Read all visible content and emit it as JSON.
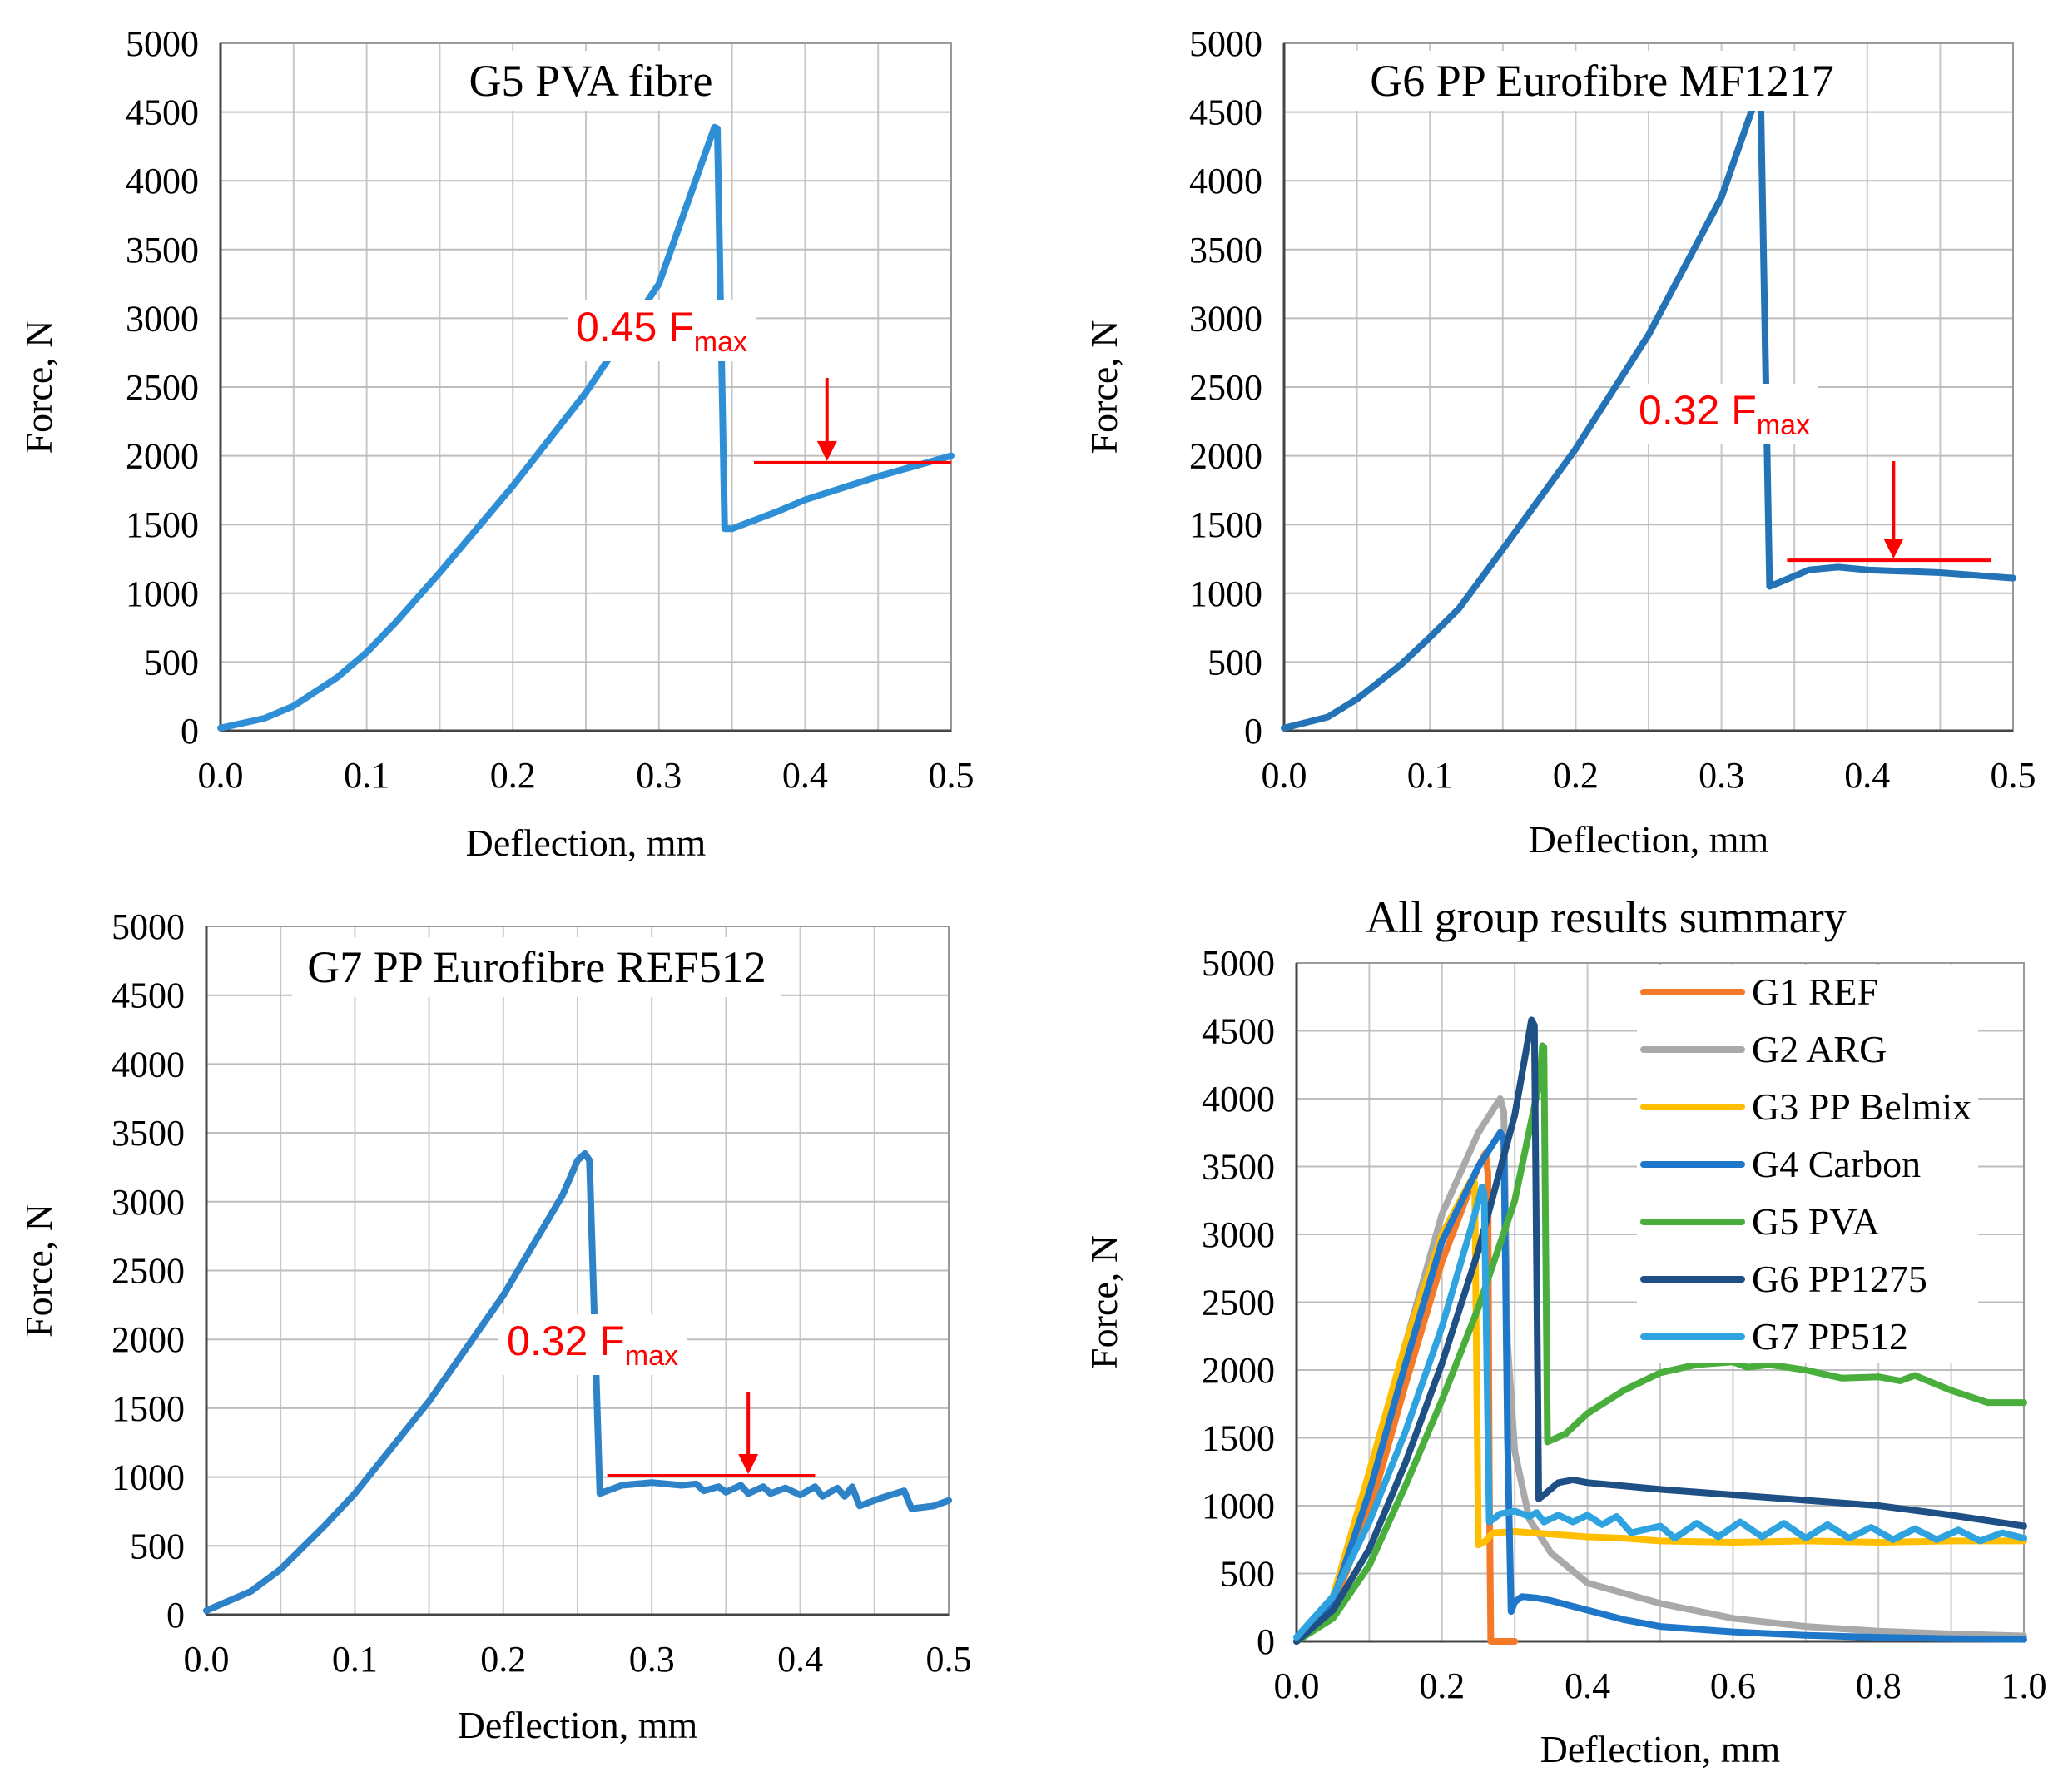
{
  "chart_data": [
    {
      "type": "line",
      "title": "G5 PVA fibre",
      "xlabel": "Deflection, mm",
      "ylabel": "Force, N",
      "xlim": [
        0,
        0.5
      ],
      "ylim": [
        0,
        5000
      ],
      "xticks": [
        "0.0",
        "0.1",
        "0.2",
        "0.3",
        "0.4",
        "0.5"
      ],
      "yticks": [
        "0",
        "500",
        "1000",
        "1500",
        "2000",
        "2500",
        "3000",
        "3500",
        "4000",
        "4500",
        "5000"
      ],
      "grid": true,
      "series": [
        {
          "name": "G5 PVA fibre",
          "color": "#2e8fd6",
          "points": [
            [
              0,
              20
            ],
            [
              0.03,
              90
            ],
            [
              0.05,
              180
            ],
            [
              0.08,
              390
            ],
            [
              0.1,
              570
            ],
            [
              0.12,
              790
            ],
            [
              0.15,
              1150
            ],
            [
              0.2,
              1780
            ],
            [
              0.25,
              2460
            ],
            [
              0.3,
              3250
            ],
            [
              0.338,
              4390
            ],
            [
              0.34,
              4380
            ],
            [
              0.345,
              1470
            ],
            [
              0.35,
              1470
            ],
            [
              0.38,
              1590
            ],
            [
              0.4,
              1680
            ],
            [
              0.45,
              1850
            ],
            [
              0.5,
              2000
            ]
          ]
        }
      ],
      "annotation": {
        "text": "0.45 F",
        "subscript": "max",
        "color": "#ff0000",
        "level": 1950,
        "x_from": 0.365,
        "x_to": 0.5,
        "arrow_x": 0.415
      }
    },
    {
      "type": "line",
      "title": "G6 PP Eurofibre MF1217",
      "xlabel": "Deflection, mm",
      "ylabel": "Force, N",
      "xlim": [
        0,
        0.5
      ],
      "ylim": [
        0,
        5000
      ],
      "xticks": [
        "0.0",
        "0.1",
        "0.2",
        "0.3",
        "0.4",
        "0.5"
      ],
      "yticks": [
        "0",
        "500",
        "1000",
        "1500",
        "2000",
        "2500",
        "3000",
        "3500",
        "4000",
        "4500",
        "5000"
      ],
      "grid": true,
      "series": [
        {
          "name": "G6 PP Eurofibre MF1217",
          "color": "#2473b6",
          "points": [
            [
              0,
              20
            ],
            [
              0.03,
              100
            ],
            [
              0.05,
              230
            ],
            [
              0.08,
              480
            ],
            [
              0.1,
              680
            ],
            [
              0.12,
              890
            ],
            [
              0.15,
              1320
            ],
            [
              0.2,
              2050
            ],
            [
              0.25,
              2880
            ],
            [
              0.3,
              3880
            ],
            [
              0.323,
              4580
            ],
            [
              0.327,
              4540
            ],
            [
              0.333,
              1050
            ],
            [
              0.34,
              1080
            ],
            [
              0.36,
              1170
            ],
            [
              0.38,
              1190
            ],
            [
              0.4,
              1170
            ],
            [
              0.45,
              1150
            ],
            [
              0.5,
              1110
            ]
          ]
        }
      ],
      "annotation": {
        "text": "0.32 F",
        "subscript": "max",
        "color": "#ff0000",
        "level": 1240,
        "x_from": 0.345,
        "x_to": 0.485,
        "arrow_x": 0.418
      }
    },
    {
      "type": "line",
      "title": "G7 PP Eurofibre REF512",
      "xlabel": "Deflection, mm",
      "ylabel": "Force, N",
      "xlim": [
        0,
        0.5
      ],
      "ylim": [
        0,
        5000
      ],
      "xticks": [
        "0.0",
        "0.1",
        "0.2",
        "0.3",
        "0.4",
        "0.5"
      ],
      "yticks": [
        "0",
        "500",
        "1000",
        "1500",
        "2000",
        "2500",
        "3000",
        "3500",
        "4000",
        "4500",
        "5000"
      ],
      "grid": true,
      "series": [
        {
          "name": "G7 PP Eurofibre REF512",
          "color": "#2e82c8",
          "points": [
            [
              0,
              30
            ],
            [
              0.03,
              170
            ],
            [
              0.05,
              330
            ],
            [
              0.08,
              650
            ],
            [
              0.1,
              880
            ],
            [
              0.15,
              1550
            ],
            [
              0.2,
              2320
            ],
            [
              0.24,
              3050
            ],
            [
              0.25,
              3300
            ],
            [
              0.255,
              3350
            ],
            [
              0.258,
              3300
            ],
            [
              0.265,
              880
            ],
            [
              0.28,
              940
            ],
            [
              0.3,
              960
            ],
            [
              0.32,
              940
            ],
            [
              0.33,
              950
            ],
            [
              0.335,
              900
            ],
            [
              0.345,
              930
            ],
            [
              0.35,
              890
            ],
            [
              0.36,
              940
            ],
            [
              0.365,
              880
            ],
            [
              0.375,
              930
            ],
            [
              0.38,
              880
            ],
            [
              0.39,
              920
            ],
            [
              0.4,
              870
            ],
            [
              0.41,
              930
            ],
            [
              0.415,
              860
            ],
            [
              0.425,
              920
            ],
            [
              0.43,
              860
            ],
            [
              0.435,
              930
            ],
            [
              0.44,
              790
            ],
            [
              0.455,
              850
            ],
            [
              0.47,
              900
            ],
            [
              0.475,
              770
            ],
            [
              0.49,
              790
            ],
            [
              0.5,
              830
            ]
          ]
        }
      ],
      "annotation": {
        "text": "0.32 F",
        "subscript": "max",
        "color": "#ff0000",
        "level": 1010,
        "x_from": 0.27,
        "x_to": 0.41,
        "arrow_x": 0.365
      }
    },
    {
      "type": "line",
      "title": "All group results summary",
      "xlabel": "Deflection, mm",
      "ylabel": "Force, N",
      "xlim": [
        0,
        1.0
      ],
      "ylim": [
        0,
        5000
      ],
      "xticks": [
        "0.0",
        "0.2",
        "0.4",
        "0.6",
        "0.8",
        "1.0"
      ],
      "yticks": [
        "0",
        "500",
        "1000",
        "1500",
        "2000",
        "2500",
        "3000",
        "3500",
        "4000",
        "4500",
        "5000"
      ],
      "grid": true,
      "legend_position": "top-right",
      "series": [
        {
          "name": "G1 REF",
          "color": "#f47a2a",
          "points": [
            [
              0,
              0
            ],
            [
              0.05,
              260
            ],
            [
              0.1,
              950
            ],
            [
              0.15,
              1900
            ],
            [
              0.2,
              2800
            ],
            [
              0.25,
              3500
            ],
            [
              0.26,
              3600
            ],
            [
              0.263,
              3450
            ],
            [
              0.265,
              1200
            ],
            [
              0.267,
              0
            ],
            [
              0.3,
              0
            ]
          ]
        },
        {
          "name": "G2 ARG",
          "color": "#a9a9a9",
          "points": [
            [
              0,
              0
            ],
            [
              0.05,
              320
            ],
            [
              0.1,
              1150
            ],
            [
              0.15,
              2200
            ],
            [
              0.2,
              3150
            ],
            [
              0.25,
              3750
            ],
            [
              0.28,
              4000
            ],
            [
              0.285,
              3900
            ],
            [
              0.29,
              2200
            ],
            [
              0.3,
              1400
            ],
            [
              0.32,
              900
            ],
            [
              0.35,
              650
            ],
            [
              0.4,
              430
            ],
            [
              0.5,
              280
            ],
            [
              0.6,
              170
            ],
            [
              0.7,
              110
            ],
            [
              0.8,
              75
            ],
            [
              0.9,
              55
            ],
            [
              1.0,
              40
            ]
          ]
        },
        {
          "name": "G3 PP Belmix",
          "color": "#ffbf00",
          "points": [
            [
              0,
              0
            ],
            [
              0.05,
              330
            ],
            [
              0.1,
              1250
            ],
            [
              0.15,
              2200
            ],
            [
              0.2,
              3000
            ],
            [
              0.24,
              3400
            ],
            [
              0.245,
              3380
            ],
            [
              0.25,
              710
            ],
            [
              0.26,
              740
            ],
            [
              0.27,
              800
            ],
            [
              0.3,
              810
            ],
            [
              0.35,
              790
            ],
            [
              0.4,
              770
            ],
            [
              0.45,
              760
            ],
            [
              0.5,
              740
            ],
            [
              0.6,
              730
            ],
            [
              0.7,
              740
            ],
            [
              0.8,
              730
            ],
            [
              0.9,
              740
            ],
            [
              1.0,
              740
            ]
          ]
        },
        {
          "name": "G4 Carbon",
          "color": "#1f77c9",
          "points": [
            [
              0,
              0
            ],
            [
              0.05,
              300
            ],
            [
              0.1,
              1100
            ],
            [
              0.15,
              2050
            ],
            [
              0.2,
              2950
            ],
            [
              0.25,
              3500
            ],
            [
              0.28,
              3750
            ],
            [
              0.285,
              3700
            ],
            [
              0.29,
              1500
            ],
            [
              0.295,
              220
            ],
            [
              0.3,
              290
            ],
            [
              0.31,
              330
            ],
            [
              0.33,
              320
            ],
            [
              0.35,
              300
            ],
            [
              0.4,
              230
            ],
            [
              0.45,
              160
            ],
            [
              0.5,
              110
            ],
            [
              0.6,
              70
            ],
            [
              0.7,
              45
            ],
            [
              0.8,
              30
            ],
            [
              0.9,
              20
            ],
            [
              1.0,
              15
            ]
          ]
        },
        {
          "name": "G5 PVA",
          "color": "#4aae3c",
          "points": [
            [
              0,
              0
            ],
            [
              0.05,
              170
            ],
            [
              0.1,
              560
            ],
            [
              0.15,
              1150
            ],
            [
              0.2,
              1780
            ],
            [
              0.25,
              2460
            ],
            [
              0.3,
              3250
            ],
            [
              0.335,
              4150
            ],
            [
              0.338,
              4390
            ],
            [
              0.34,
              4380
            ],
            [
              0.345,
              1470
            ],
            [
              0.37,
              1530
            ],
            [
              0.4,
              1680
            ],
            [
              0.45,
              1850
            ],
            [
              0.5,
              1980
            ],
            [
              0.55,
              2040
            ],
            [
              0.6,
              2060
            ],
            [
              0.62,
              2020
            ],
            [
              0.65,
              2040
            ],
            [
              0.7,
              2000
            ],
            [
              0.75,
              1940
            ],
            [
              0.8,
              1950
            ],
            [
              0.83,
              1920
            ],
            [
              0.85,
              1960
            ],
            [
              0.9,
              1850
            ],
            [
              0.95,
              1760
            ],
            [
              1.0,
              1760
            ]
          ]
        },
        {
          "name": "G6 PP1275",
          "color": "#1e4f85",
          "points": [
            [
              0,
              0
            ],
            [
              0.05,
              230
            ],
            [
              0.1,
              680
            ],
            [
              0.15,
              1320
            ],
            [
              0.2,
              2050
            ],
            [
              0.25,
              2880
            ],
            [
              0.3,
              3880
            ],
            [
              0.323,
              4580
            ],
            [
              0.327,
              4540
            ],
            [
              0.333,
              1050
            ],
            [
              0.34,
              1080
            ],
            [
              0.36,
              1170
            ],
            [
              0.38,
              1190
            ],
            [
              0.4,
              1170
            ],
            [
              0.5,
              1120
            ],
            [
              0.6,
              1080
            ],
            [
              0.7,
              1040
            ],
            [
              0.8,
              1000
            ],
            [
              0.9,
              930
            ],
            [
              1.0,
              850
            ]
          ]
        },
        {
          "name": "G7 PP512",
          "color": "#2ea3e0",
          "points": [
            [
              0,
              30
            ],
            [
              0.05,
              330
            ],
            [
              0.1,
              880
            ],
            [
              0.15,
              1550
            ],
            [
              0.2,
              2320
            ],
            [
              0.24,
              3050
            ],
            [
              0.255,
              3350
            ],
            [
              0.258,
              3300
            ],
            [
              0.265,
              880
            ],
            [
              0.28,
              940
            ],
            [
              0.3,
              960
            ],
            [
              0.32,
              920
            ],
            [
              0.33,
              950
            ],
            [
              0.34,
              880
            ],
            [
              0.36,
              930
            ],
            [
              0.38,
              880
            ],
            [
              0.4,
              930
            ],
            [
              0.42,
              860
            ],
            [
              0.44,
              920
            ],
            [
              0.46,
              800
            ],
            [
              0.5,
              850
            ],
            [
              0.52,
              760
            ],
            [
              0.55,
              870
            ],
            [
              0.58,
              770
            ],
            [
              0.61,
              880
            ],
            [
              0.64,
              770
            ],
            [
              0.67,
              870
            ],
            [
              0.7,
              760
            ],
            [
              0.73,
              860
            ],
            [
              0.76,
              760
            ],
            [
              0.79,
              840
            ],
            [
              0.82,
              750
            ],
            [
              0.85,
              830
            ],
            [
              0.88,
              750
            ],
            [
              0.91,
              820
            ],
            [
              0.94,
              740
            ],
            [
              0.97,
              800
            ],
            [
              1.0,
              760
            ]
          ]
        }
      ]
    }
  ]
}
